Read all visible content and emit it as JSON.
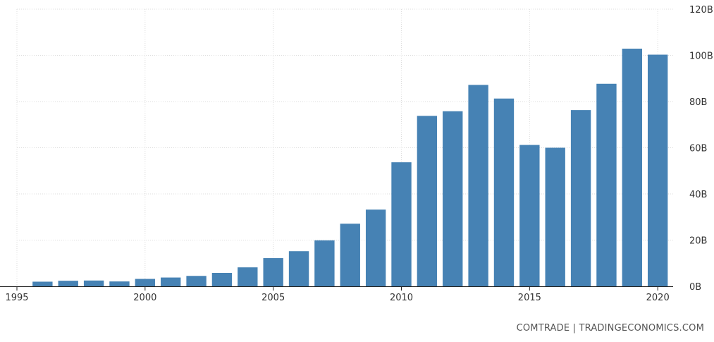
{
  "chart_data": {
    "type": "bar",
    "x": [
      1996,
      1997,
      1998,
      1999,
      2000,
      2001,
      2002,
      2003,
      2004,
      2005,
      2006,
      2007,
      2008,
      2009,
      2010,
      2011,
      2012,
      2013,
      2014,
      2015,
      2016,
      2017,
      2018,
      2019,
      2020
    ],
    "values": [
      2000000000.0,
      2400000000.0,
      2500000000.0,
      2100000000.0,
      3200000000.0,
      3800000000.0,
      4500000000.0,
      5800000000.0,
      8200000000.0,
      12200000000.0,
      15200000000.0,
      19900000000.0,
      27100000000.0,
      33200000000.0,
      53700000000.0,
      73800000000.0,
      75800000000.0,
      87200000000.0,
      81300000000.0,
      61200000000.0,
      60000000000.0,
      76300000000.0,
      87700000000.0,
      102900000000.0,
      100300000000.0
    ],
    "xlim": [
      1995,
      2020.6
    ],
    "ylim": [
      0,
      120000000000.0
    ],
    "x_ticks": [
      1995,
      2000,
      2005,
      2010,
      2015,
      2020
    ],
    "x_tick_labels": [
      "1995",
      "2000",
      "2005",
      "2010",
      "2015",
      "2020"
    ],
    "y_ticks": [
      0,
      20000000000.0,
      40000000000.0,
      60000000000.0,
      80000000000.0,
      100000000000.0,
      120000000000.0
    ],
    "y_tick_labels": [
      "0B",
      "20B",
      "40B",
      "60B",
      "80B",
      "100B",
      "120B"
    ],
    "y_axis_side": "right",
    "grid": true,
    "bar_color": "#4682b4"
  },
  "source_label": "COMTRADE | TRADINGECONOMICS.COM"
}
